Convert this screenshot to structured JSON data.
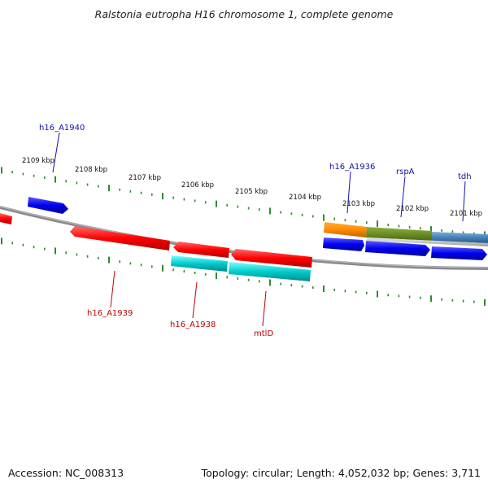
{
  "title": "Ralstonia eutropha H16 chromosome 1, complete genome",
  "footer": {
    "accession": "Accession: NC_008313",
    "topology": "Topology: circular; Length: 4,052,032 bp; Genes: 3,711"
  },
  "colors": {
    "backbone": "#8a8a8a",
    "tick": "#2e8b2e",
    "forward_label": "#1010b0",
    "reverse_label": "#c00000",
    "red_gene": "#ff0000",
    "blue_gene": "#0000ee",
    "cyan_gene": "#00c8c8",
    "orange_gene": "#ff8c00",
    "green_gene": "#6b8e23",
    "steel_gene": "#4682b4",
    "grey_gene": "#c8c8c8"
  },
  "scale": {
    "unit": "kbp",
    "labels": [
      {
        "kbp": 2109,
        "text": "2109 kbp"
      },
      {
        "kbp": 2108,
        "text": "2108 kbp"
      },
      {
        "kbp": 2107,
        "text": "2107 kbp"
      },
      {
        "kbp": 2106,
        "text": "2106 kbp"
      },
      {
        "kbp": 2105,
        "text": "2105 kbp"
      },
      {
        "kbp": 2104,
        "text": "2104 kbp"
      },
      {
        "kbp": 2103,
        "text": "2103 kbp"
      },
      {
        "kbp": 2102,
        "text": "2102 kbp"
      },
      {
        "kbp": 2101,
        "text": "2101 kbp"
      }
    ]
  },
  "labels": [
    {
      "text": "h16_A1940",
      "strand": "forward"
    },
    {
      "text": "h16_A1936",
      "strand": "forward"
    },
    {
      "text": "rspA",
      "strand": "forward"
    },
    {
      "text": "tdh",
      "strand": "forward"
    },
    {
      "text": "h16_A1939",
      "strand": "reverse"
    },
    {
      "text": "h16_A1938",
      "strand": "reverse"
    },
    {
      "text": "mtlD",
      "strand": "reverse"
    }
  ]
}
